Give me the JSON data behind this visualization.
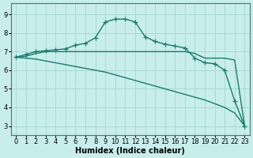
{
  "xlabel": "Humidex (Indice chaleur)",
  "bg_color": "#c8eeec",
  "grid_color": "#a8d8d4",
  "line_color": "#1a7a6e",
  "x_values": [
    0,
    1,
    2,
    3,
    4,
    5,
    6,
    7,
    8,
    9,
    10,
    11,
    12,
    13,
    14,
    15,
    16,
    17,
    18,
    19,
    20,
    21,
    22,
    23
  ],
  "series_with_markers": [
    [
      6.7,
      6.85,
      7.0,
      7.05,
      7.1,
      7.15,
      7.35,
      7.45,
      7.75,
      8.6,
      8.75,
      8.75,
      8.6,
      7.8,
      7.55,
      7.4,
      7.3,
      7.2,
      6.65,
      6.4,
      6.35,
      6.0,
      4.35,
      3.0
    ]
  ],
  "series_no_markers": [
    [
      6.7,
      6.75,
      6.9,
      7.0,
      7.0,
      7.0,
      7.0,
      7.0,
      7.0,
      7.0,
      7.0,
      7.0,
      7.0,
      7.0,
      7.0,
      7.0,
      7.0,
      7.0,
      6.9,
      6.65,
      6.65,
      6.65,
      6.55,
      3.0
    ],
    [
      6.7,
      6.65,
      6.6,
      6.5,
      6.4,
      6.3,
      6.2,
      6.1,
      6.0,
      5.9,
      5.75,
      5.6,
      5.45,
      5.3,
      5.15,
      5.0,
      4.85,
      4.7,
      4.55,
      4.4,
      4.2,
      4.0,
      3.7,
      3.0
    ]
  ],
  "ylim": [
    2.5,
    9.6
  ],
  "xlim": [
    -0.5,
    23.5
  ],
  "yticks": [
    3,
    4,
    5,
    6,
    7,
    8,
    9
  ],
  "xticks": [
    0,
    1,
    2,
    3,
    4,
    5,
    6,
    7,
    8,
    9,
    10,
    11,
    12,
    13,
    14,
    15,
    16,
    17,
    18,
    19,
    20,
    21,
    22,
    23
  ],
  "marker": "+",
  "marker_size": 4,
  "line_width": 1.0,
  "xlabel_fontsize": 7,
  "tick_fontsize": 6
}
